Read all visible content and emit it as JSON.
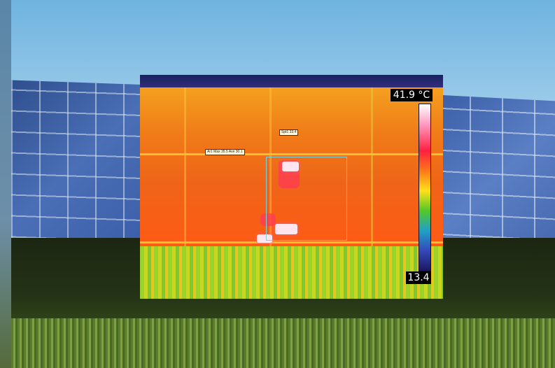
{
  "thermal_overlay": {
    "max_temp_label": "41.9 °C",
    "min_temp_label": "13.4",
    "spot_label": "Spt1 33.4",
    "area_label": "Ar1 Max 35.5 Ave 30.1"
  },
  "colors": {
    "sky": "#6fb3e0",
    "panel_blue": "#3b5fa8",
    "thermal_orange": "#f07a18",
    "hotspot": "#ffe6ee",
    "roi_outline": "#7fcfd8"
  }
}
